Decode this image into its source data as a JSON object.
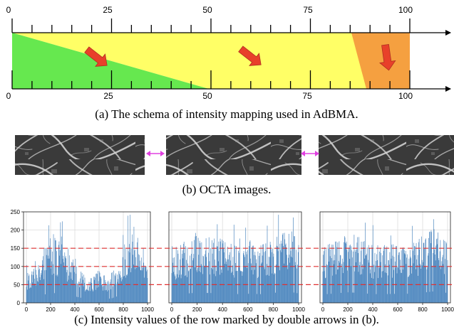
{
  "panel_a": {
    "caption": "(a) The schema of intensity mapping used in AdBMA.",
    "top_ticks": [
      "0",
      "25",
      "50",
      "75",
      "100"
    ],
    "bottom_ticks": [
      "0",
      "25",
      "50",
      "75",
      "100"
    ],
    "colors": {
      "green": "#66e84f",
      "yellow": "#ffff66",
      "orange": "#f5a040",
      "arrow": "#e8402a"
    }
  },
  "panel_b": {
    "caption": "(b) OCTA images.",
    "image_count": 3,
    "double_arrow_color": "#e040e0"
  },
  "panel_c": {
    "caption": "(c) Intensity values of the row marked by double arrows in (b).",
    "bar_color": "#3a7ab8",
    "reference_line_color": "#e03030"
  },
  "chart_data": [
    {
      "type": "bar",
      "name": "intensity-row-1",
      "x_ticks": [
        "0",
        "200",
        "400",
        "600",
        "800",
        "1000"
      ],
      "y_ticks": [
        "0",
        "50",
        "100",
        "150",
        "200",
        "250"
      ],
      "xlim": [
        0,
        1000
      ],
      "ylim": [
        0,
        250
      ],
      "reference_lines": [
        50,
        100,
        150
      ],
      "grid": true,
      "seed": 7,
      "profile": [
        [
          0,
          60
        ],
        [
          100,
          75
        ],
        [
          150,
          115
        ],
        [
          200,
          140
        ],
        [
          250,
          130
        ],
        [
          300,
          125
        ],
        [
          350,
          90
        ],
        [
          400,
          90
        ],
        [
          450,
          70
        ],
        [
          500,
          50
        ],
        [
          550,
          55
        ],
        [
          600,
          70
        ],
        [
          650,
          55
        ],
        [
          700,
          60
        ],
        [
          750,
          90
        ],
        [
          800,
          105
        ],
        [
          850,
          145
        ],
        [
          900,
          160
        ],
        [
          950,
          100
        ],
        [
          1000,
          70
        ]
      ]
    },
    {
      "type": "bar",
      "name": "intensity-row-2",
      "x_ticks": [
        "0",
        "200",
        "400",
        "600",
        "800",
        "1000"
      ],
      "xlim": [
        0,
        1000
      ],
      "ylim": [
        0,
        250
      ],
      "reference_lines": [
        50,
        100,
        150
      ],
      "grid": true,
      "seed": 13,
      "profile": [
        [
          0,
          110
        ],
        [
          100,
          125
        ],
        [
          200,
          140
        ],
        [
          300,
          135
        ],
        [
          400,
          130
        ],
        [
          500,
          120
        ],
        [
          600,
          125
        ],
        [
          700,
          120
        ],
        [
          800,
          135
        ],
        [
          900,
          160
        ],
        [
          1000,
          130
        ]
      ]
    },
    {
      "type": "bar",
      "name": "intensity-row-3",
      "x_ticks": [
        "0",
        "200",
        "400",
        "600",
        "800",
        "1000"
      ],
      "xlim": [
        0,
        1000
      ],
      "ylim": [
        0,
        250
      ],
      "reference_lines": [
        50,
        100,
        150
      ],
      "grid": true,
      "seed": 29,
      "profile": [
        [
          0,
          115
        ],
        [
          100,
          130
        ],
        [
          200,
          145
        ],
        [
          300,
          135
        ],
        [
          400,
          120
        ],
        [
          500,
          120
        ],
        [
          600,
          125
        ],
        [
          700,
          125
        ],
        [
          800,
          140
        ],
        [
          900,
          160
        ],
        [
          1000,
          135
        ]
      ]
    }
  ]
}
